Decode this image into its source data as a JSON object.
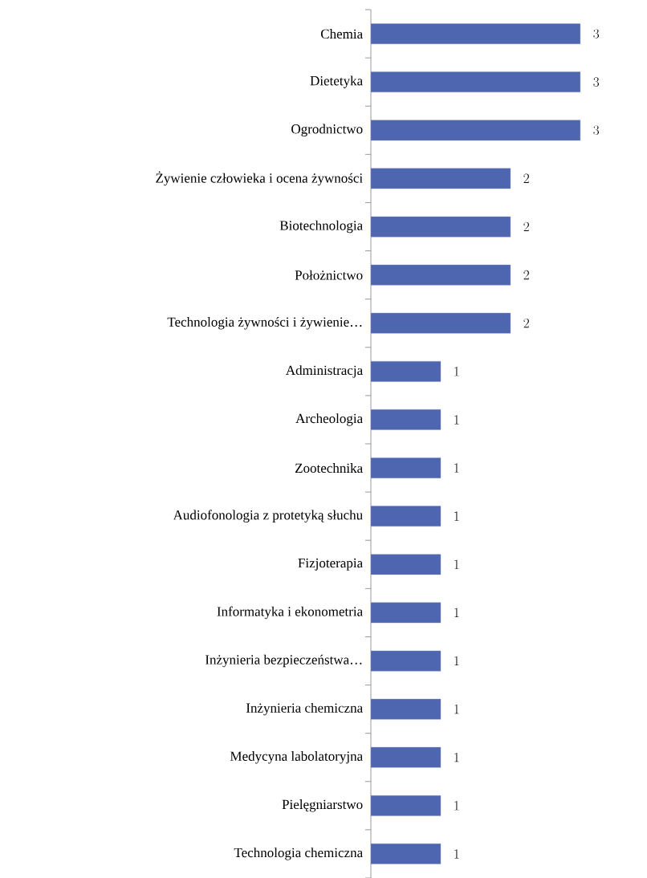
{
  "chart_data": {
    "type": "bar",
    "orientation": "horizontal",
    "data_labels": true,
    "categories": [
      "Chemia",
      "Dietetyka",
      "Ogrodnictwo",
      "Żywienie człowieka i ocena żywności",
      "Biotechnologia",
      "Położnictwo",
      "Technologia żywności i żywienie…",
      "Administracja",
      "Archeologia",
      "Zootechnika",
      "Audiofonologia z protetyką słuchu",
      "Fizjoterapia",
      "Informatyka i ekonometria",
      "Inżynieria bezpieczeństwa…",
      "Inżynieria chemiczna",
      "Medycyna labolatoryjna",
      "Pielęgniarstwo",
      "Technologia chemiczna"
    ],
    "values": [
      3,
      3,
      3,
      2,
      2,
      2,
      2,
      1,
      1,
      1,
      1,
      1,
      1,
      1,
      1,
      1,
      1,
      1
    ],
    "color": "#4e65b0"
  }
}
